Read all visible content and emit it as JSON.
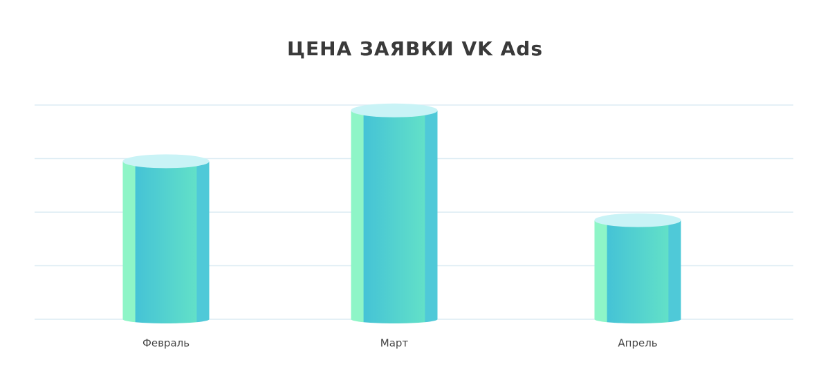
{
  "chart_data": {
    "type": "bar",
    "title": "ЦЕНА ЗАЯВКИ VK Ads",
    "categories": [
      "Февраль",
      "Март",
      "Апрель"
    ],
    "values": [
      2.95,
      3.9,
      1.85
    ],
    "color": "#45c3d6",
    "ylim": [
      0,
      4
    ],
    "yticks": [
      0,
      1,
      2,
      3,
      4
    ],
    "grid": true
  }
}
